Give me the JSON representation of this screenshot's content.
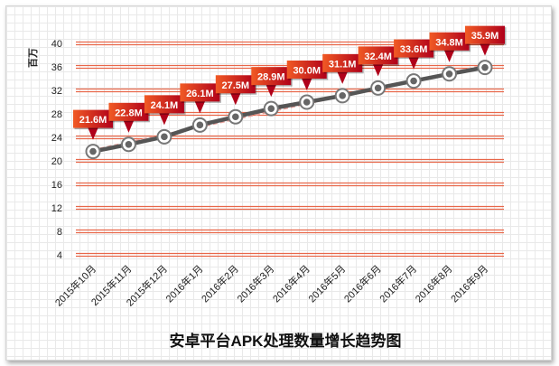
{
  "chart_data": {
    "type": "line",
    "title": "安卓平台APK处理数量增长趋势图",
    "ylabel": "百万",
    "xlabel": "",
    "ylim": [
      4,
      40
    ],
    "yticks": [
      4,
      8,
      12,
      16,
      20,
      24,
      28,
      32,
      36,
      40
    ],
    "categories": [
      "2015年10月",
      "2015年11月",
      "2015年12月",
      "2016年1月",
      "2016年2月",
      "2016年3月",
      "2016年4月",
      "2016年5月",
      "2016年6月",
      "2016年7月",
      "2016年8月",
      "2016年9月"
    ],
    "values": [
      21.6,
      22.8,
      24.1,
      26.1,
      27.5,
      28.9,
      30.0,
      31.1,
      32.4,
      33.6,
      34.8,
      35.9
    ],
    "data_labels": [
      "21.6M",
      "22.8M",
      "24.1M",
      "26.1M",
      "27.5M",
      "28.9M",
      "30.0M",
      "31.1M",
      "32.4M",
      "33.6M",
      "34.8M",
      "35.9M"
    ],
    "grid": true,
    "legend": "none",
    "colors": {
      "gridline": "#e8674a",
      "line": "#555555",
      "trend": "#e8a09a",
      "label_fill_start": "#f15a24",
      "label_fill_end": "#b0001a"
    }
  }
}
